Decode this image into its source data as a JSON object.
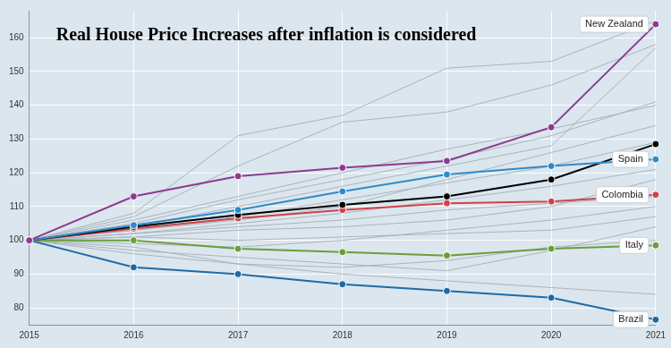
{
  "chart_data": {
    "type": "line",
    "title": "Real House Price Increases after inflation is considered",
    "categories": [
      "2015",
      "2016",
      "2017",
      "2018",
      "2019",
      "2020",
      "2021"
    ],
    "ylim": [
      75,
      168
    ],
    "yticks": [
      80,
      90,
      100,
      110,
      120,
      130,
      140,
      150,
      160
    ],
    "grid": true,
    "series": [
      {
        "name": "New Zealand",
        "color": "#8e3a8e",
        "marker": "circle",
        "values": [
          100,
          113,
          119,
          121.5,
          123.5,
          133.5,
          164
        ]
      },
      {
        "name": "Spain",
        "color": "#2e8bc9",
        "marker": "circle",
        "values": [
          100,
          104.5,
          109,
          114.5,
          119.5,
          122,
          124
        ]
      },
      {
        "color": "#000000",
        "marker": "circle",
        "values": [
          100,
          104,
          107.5,
          110.5,
          113,
          118,
          128.5
        ]
      },
      {
        "name": "Colombia",
        "color": "#d0424a",
        "marker": "circle",
        "values": [
          100,
          103.5,
          106.5,
          109,
          111,
          111.5,
          113.5
        ]
      },
      {
        "name": "Italy",
        "color": "#6a9e3a",
        "marker": "circle",
        "values": [
          100,
          100,
          97.5,
          96.5,
          95.5,
          97.5,
          98.5
        ]
      },
      {
        "name": "Brazil",
        "color": "#1f6aa5",
        "marker": "circle",
        "values": [
          100,
          92,
          90,
          87,
          85,
          83,
          76.5
        ]
      },
      {
        "color": "#aab4bd",
        "values": [
          100,
          106,
          113,
          120,
          127,
          133,
          140
        ]
      },
      {
        "color": "#aab4bd",
        "values": [
          100,
          108,
          131,
          137,
          151,
          153,
          165
        ]
      },
      {
        "color": "#aab4bd",
        "values": [
          100,
          105,
          112,
          118,
          124,
          131,
          141
        ]
      },
      {
        "color": "#aab4bd",
        "values": [
          100,
          103,
          107,
          112,
          117,
          122,
          129
        ]
      },
      {
        "color": "#aab4bd",
        "values": [
          100,
          102,
          105,
          108,
          112,
          116,
          121
        ]
      },
      {
        "color": "#aab4bd",
        "values": [
          100,
          101,
          103,
          104,
          106,
          110,
          118
        ]
      },
      {
        "color": "#aab4bd",
        "values": [
          100,
          99,
          98,
          100,
          103,
          106,
          110
        ]
      },
      {
        "color": "#aab4bd",
        "values": [
          100,
          97,
          95,
          93,
          91,
          97,
          104
        ]
      },
      {
        "color": "#aab4bd",
        "values": [
          100,
          98,
          93,
          90,
          88,
          86,
          84
        ]
      },
      {
        "color": "#aab4bd",
        "values": [
          100,
          104,
          110,
          116,
          122,
          128,
          157
        ]
      },
      {
        "color": "#aab4bd",
        "values": [
          100,
          107,
          122,
          135,
          138,
          146,
          158
        ]
      },
      {
        "color": "#aab4bd",
        "values": [
          100,
          103,
          106,
          110,
          118,
          126,
          134
        ]
      },
      {
        "color": "#aab4bd",
        "values": [
          100,
          102,
          104,
          106,
          109,
          111,
          113
        ]
      },
      {
        "color": "#aab4bd",
        "values": [
          100,
          101,
          100,
          101,
          102,
          103,
          107
        ]
      },
      {
        "color": "#aab4bd",
        "values": [
          100,
          96,
          93,
          92,
          94,
          98,
          100
        ]
      }
    ]
  }
}
